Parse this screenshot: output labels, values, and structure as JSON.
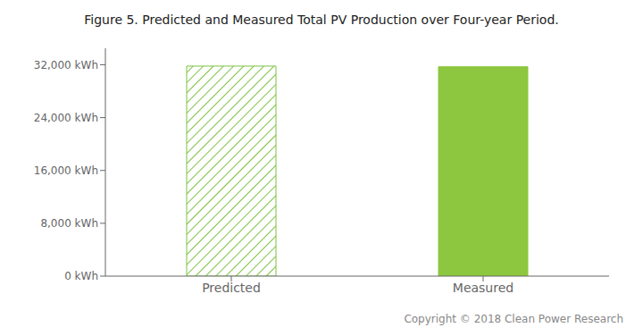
{
  "chart_data": {
    "type": "bar",
    "title": "Figure 5. Predicted and Measured Total PV Production over Four-year Period.",
    "categories": [
      "Predicted",
      "Measured"
    ],
    "values": [
      31800,
      31700
    ],
    "colors": [
      "#7dc242",
      "#8dc63f"
    ],
    "ylim": [
      0,
      34500
    ],
    "yticks": [
      {
        "value": 0,
        "label": "0 kWh"
      },
      {
        "value": 8000,
        "label": "8,000 kWh"
      },
      {
        "value": 16000,
        "label": "16,000 kWh"
      },
      {
        "value": 24000,
        "label": "24,000 kWh"
      },
      {
        "value": 32000,
        "label": "32,000 kWh"
      }
    ],
    "grid": false,
    "annotations": [
      "Copyright © 2018 Clean Power Research"
    ]
  }
}
